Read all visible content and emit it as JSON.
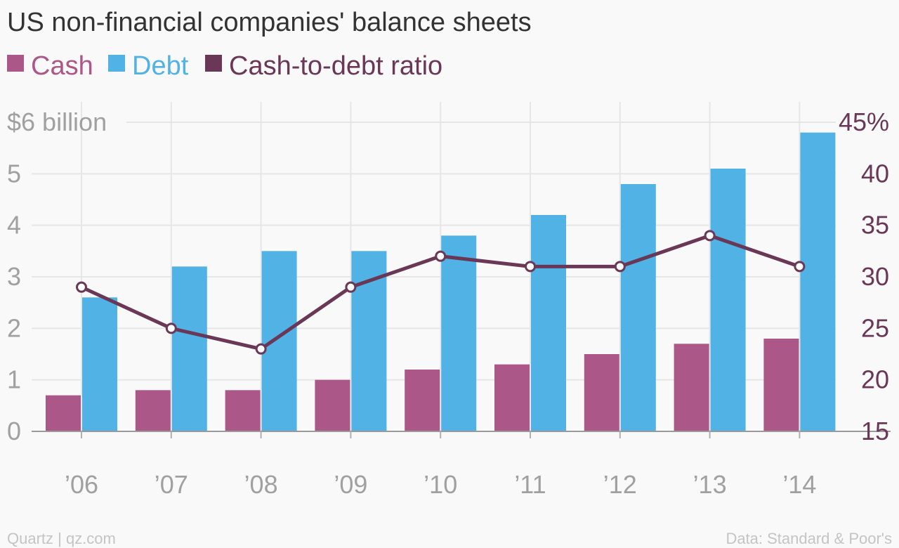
{
  "chart_data": {
    "type": "bar",
    "title": "US non-financial companies' balance sheets",
    "categories": [
      "’06",
      "’07",
      "’08",
      "’09",
      "’10",
      "’11",
      "’12",
      "’13",
      "’14"
    ],
    "series": [
      {
        "name": "Cash",
        "type": "bar",
        "axis": "left",
        "color": "#ab5787",
        "values": [
          0.7,
          0.8,
          0.8,
          1.0,
          1.2,
          1.3,
          1.5,
          1.7,
          1.8
        ]
      },
      {
        "name": "Debt",
        "type": "bar",
        "axis": "left",
        "color": "#51b2e5",
        "values": [
          2.6,
          3.2,
          3.5,
          3.5,
          3.8,
          4.2,
          4.8,
          5.1,
          5.8
        ]
      },
      {
        "name": "Cash-to-debt ratio",
        "type": "line",
        "axis": "right",
        "color": "#6a3856",
        "values": [
          29,
          25,
          23,
          29,
          32,
          31,
          31,
          34,
          31
        ]
      }
    ],
    "y_left": {
      "ylim": [
        0,
        6
      ],
      "ticks": [
        "0",
        "1",
        "2",
        "3",
        "4",
        "5",
        "$6 billion"
      ]
    },
    "y_right": {
      "ylim": [
        15,
        45
      ],
      "ticks": [
        "15",
        "20",
        "25",
        "30",
        "35",
        "40",
        "45%"
      ]
    },
    "grid": true,
    "legend": "top-left"
  },
  "footer": {
    "source_left": "Quartz | qz.com",
    "source_right": "Data: Standard & Poor's"
  },
  "colors": {
    "cash": "#ab5787",
    "debt": "#51b2e5",
    "ratio": "#6a3856",
    "grid": "#e6e6e6",
    "axis_text": "#a0a0a0"
  }
}
